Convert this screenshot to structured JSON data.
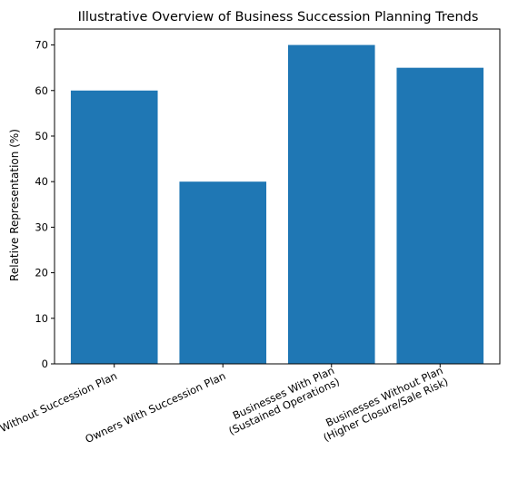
{
  "chart_data": {
    "type": "bar",
    "title": "Illustrative Overview of Business Succession Planning Trends",
    "xlabel": "",
    "ylabel": "Relative Representation (%)",
    "categories": [
      [
        "Owners Without Succession Plan"
      ],
      [
        "Owners With Succession Plan"
      ],
      [
        "Businesses With Plan",
        "(Sustained Operations)"
      ],
      [
        "Businesses Without Plan",
        "(Higher Closure/Sale Risk)"
      ]
    ],
    "values": [
      60,
      40,
      70,
      65
    ],
    "ylim": [
      0,
      73.5
    ],
    "yticks": [
      0,
      10,
      20,
      30,
      40,
      50,
      60,
      70
    ],
    "grid": false,
    "bar_color": "#1f77b4"
  }
}
